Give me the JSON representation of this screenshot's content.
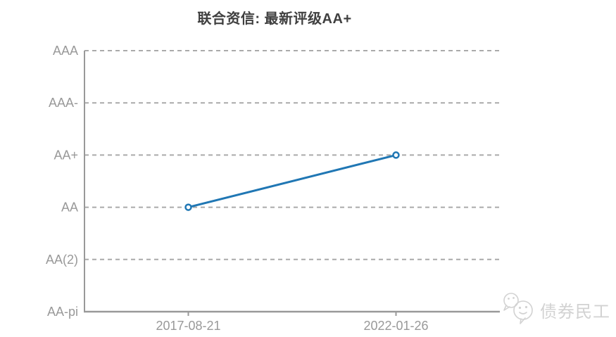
{
  "title": "联合资信: 最新评级AA+",
  "watermark": {
    "text": "债券民工",
    "icon": "wechat-chat-bubbles-icon"
  },
  "colors": {
    "line": "#2077b4",
    "marker_fill": "#ffffff",
    "grid": "#aaaaaa",
    "axis": "#999999",
    "label": "#999999",
    "title": "#404040",
    "watermark": "#d2d2d2"
  },
  "chart_data": {
    "type": "line",
    "title": "联合资信: 最新评级AA+",
    "xlabel": "",
    "ylabel": "",
    "grid": "dashed-horizontal",
    "legend": "none",
    "y_categories_top_to_bottom": [
      "AAA",
      "AAA-",
      "AA+",
      "AA",
      "AA(2)",
      "AA-pi"
    ],
    "x_categories": [
      "2017-08-21",
      "2022-01-26"
    ],
    "points": [
      {
        "x": "2017-08-21",
        "y": "AA"
      },
      {
        "x": "2022-01-26",
        "y": "AA+"
      }
    ],
    "marker": "hollow-circle",
    "line_width": 3
  }
}
